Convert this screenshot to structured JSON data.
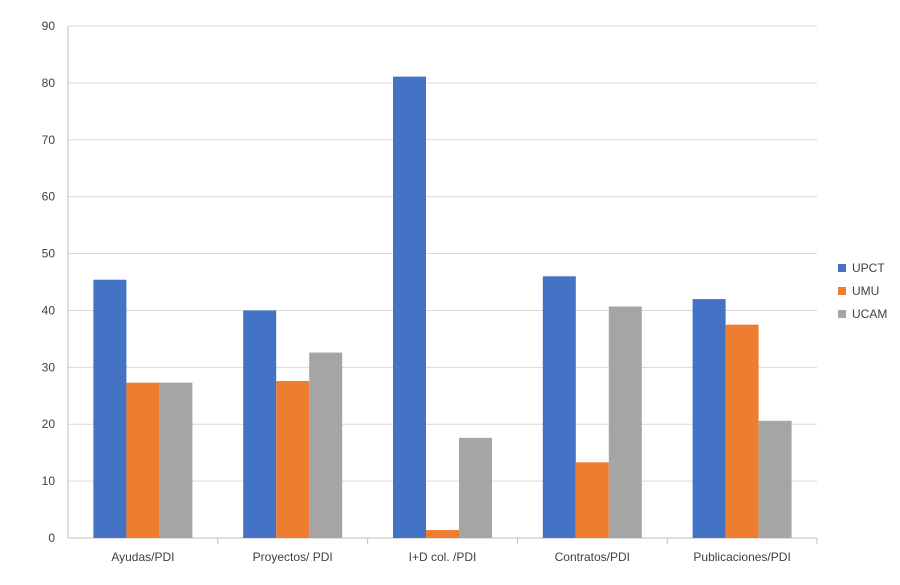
{
  "chart_data": {
    "type": "bar",
    "categories": [
      "Ayudas/PDI",
      "Proyectos/ PDI",
      "I+D col. /PDI",
      "Contratos/PDI",
      "Publicaciones/PDI"
    ],
    "series": [
      {
        "name": "UPCT",
        "color": "#4472C4",
        "values": [
          45.4,
          40.0,
          81.1,
          46.0,
          42.0
        ]
      },
      {
        "name": "UMU",
        "color": "#ED7D31",
        "values": [
          27.3,
          27.6,
          1.4,
          13.3,
          37.5
        ]
      },
      {
        "name": "UCAM",
        "color": "#A5A5A5",
        "values": [
          27.3,
          32.6,
          17.6,
          40.7,
          20.6
        ]
      }
    ],
    "ylim": [
      0,
      90
    ],
    "yticks": [
      0,
      10,
      20,
      30,
      40,
      50,
      60,
      70,
      80,
      90
    ],
    "grid": true,
    "legend_position": "right"
  }
}
